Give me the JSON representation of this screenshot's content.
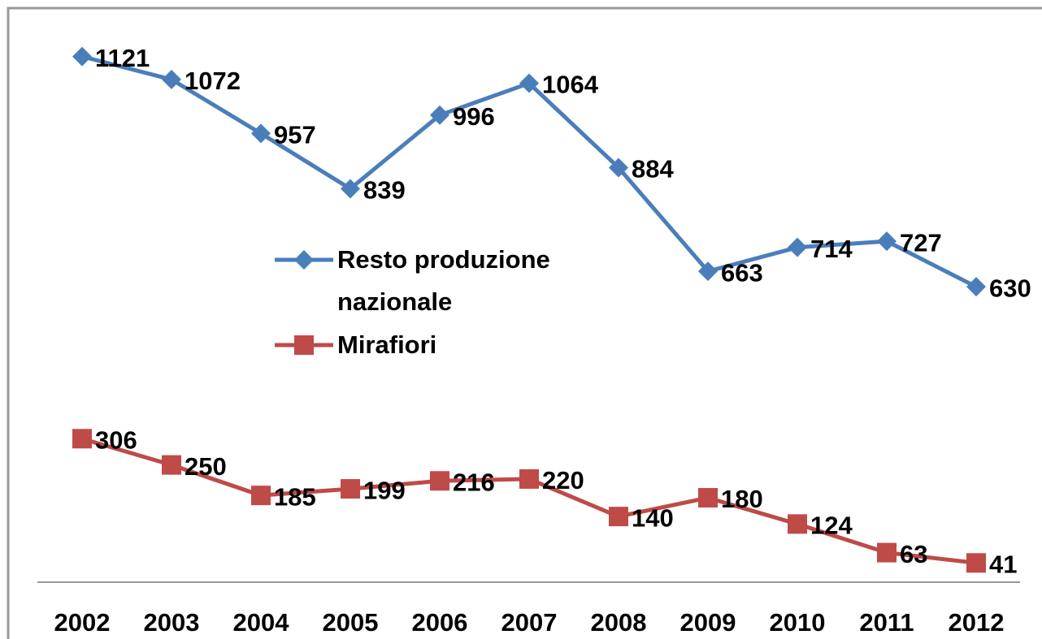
{
  "chart_data": {
    "type": "line",
    "categories": [
      "2002",
      "2003",
      "2004",
      "2005",
      "2006",
      "2007",
      "2008",
      "2009",
      "2010",
      "2011",
      "2012"
    ],
    "series": [
      {
        "name": "Resto produzione nazionale",
        "color": "#4a7ebb",
        "marker": "diamond",
        "values": [
          1121,
          1072,
          957,
          839,
          996,
          1064,
          884,
          663,
          714,
          727,
          630
        ]
      },
      {
        "name": "Mirafiori",
        "color": "#be4b48",
        "marker": "square",
        "values": [
          306,
          250,
          185,
          199,
          216,
          220,
          140,
          180,
          124,
          63,
          41
        ]
      }
    ],
    "ylim": [
      0,
      1200
    ]
  }
}
